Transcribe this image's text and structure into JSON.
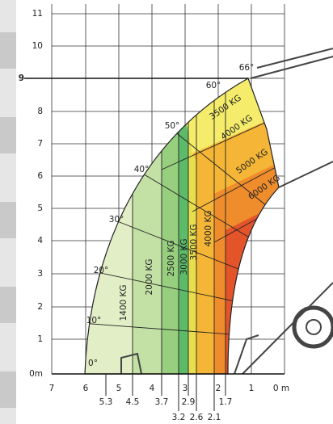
{
  "y_axis": {
    "labels": [
      "11",
      "10",
      "9",
      "8",
      "7",
      "6",
      "5",
      "4",
      "3",
      "2",
      "1",
      "0m"
    ]
  },
  "x_axis": {
    "labels": [
      "7",
      "6",
      "5",
      "4",
      "3",
      "2",
      "1",
      "0 m"
    ]
  },
  "reach_labels": {
    "row1": [
      "5.3",
      "4.5",
      "3.7",
      "2.9",
      "1.7"
    ],
    "row2": [
      "3.2",
      "2.6",
      "2.1"
    ]
  },
  "angle_labels": [
    "0°",
    "10°",
    "20°",
    "30°",
    "40°",
    "50°",
    "60°",
    "66°"
  ],
  "load_labels": {
    "vertical": [
      "1400 KG",
      "2000 KG",
      "2500 KG",
      "3000 KG",
      "3500 KG",
      "4000 KG"
    ],
    "diagonal": [
      "3500 KG",
      "4000 KG",
      "5000 KG",
      "6000 KG"
    ]
  }
}
